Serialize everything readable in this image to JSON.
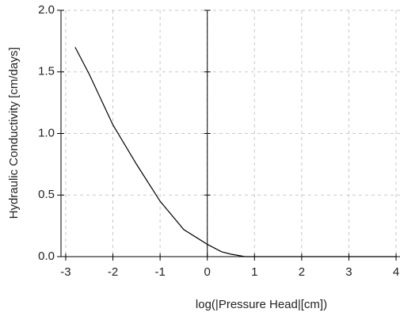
{
  "chart_data": {
    "type": "line",
    "x_label": "log(|Pressure Head|[cm])",
    "y_label": "Hydraulic Conductivity [cm/days]",
    "xlim": [
      -3.1,
      4.1
    ],
    "xticks": [
      -3,
      -2,
      -1,
      0,
      1,
      2,
      3,
      4
    ],
    "ylim": [
      0,
      2
    ],
    "yticks": [
      {
        "value": 0,
        "label": "0.0"
      },
      {
        "value": 0.5,
        "label": "0.5"
      },
      {
        "value": 1,
        "label": "1.0"
      },
      {
        "value": 1.5,
        "label": "1.5"
      },
      {
        "value": 2,
        "label": "2.0"
      }
    ],
    "grid": true,
    "series": [
      {
        "color": "#000000",
        "x": [
          -2.8,
          -2.5,
          -2,
          -1.5,
          -1,
          -0.5,
          0,
          0.3,
          0.5,
          0.8,
          1,
          2,
          3,
          4
        ],
        "values": [
          1.7,
          1.48,
          1.07,
          0.75,
          0.45,
          0.22,
          0.1,
          0.04,
          0.02,
          0.0,
          0,
          0,
          0,
          0
        ]
      }
    ]
  }
}
